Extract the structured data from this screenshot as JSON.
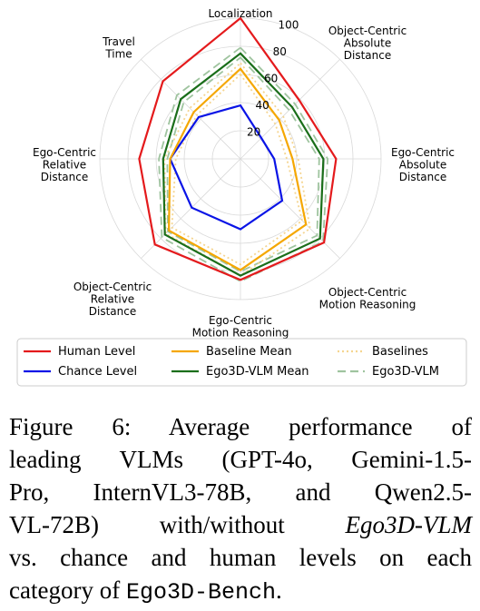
{
  "chart_data": {
    "type": "radar",
    "axes": [
      [
        "Localization"
      ],
      [
        "Object-Centric",
        "Absolute",
        "Distance"
      ],
      [
        "Ego-Centric",
        "Absolute",
        "Distance"
      ],
      [
        "Object-Centric",
        "Motion Reasoning"
      ],
      [
        "Ego-Centric",
        "Motion Reasoning"
      ],
      [
        "Object-Centric",
        "Relative",
        "Distance"
      ],
      [
        "Ego-Centric",
        "Relative",
        "Distance"
      ],
      [
        "Travel",
        "Time"
      ]
    ],
    "r_ticks": [
      "20",
      "40",
      "60",
      "80",
      "100"
    ],
    "r_range": [
      0,
      100
    ],
    "grid": true,
    "legend_position": "bottom",
    "series": [
      {
        "name": "Human Level",
        "color": "#e41a1c",
        "style": "solid",
        "values": [
          100,
          59,
          68,
          84,
          86,
          86,
          72,
          78
        ]
      },
      {
        "name": "Chance Level",
        "color": "#0a14e6",
        "style": "solid",
        "values": [
          38,
          21,
          24,
          42,
          50,
          49,
          50,
          42
        ]
      },
      {
        "name": "Baseline Mean",
        "color": "#f5a700",
        "style": "solid",
        "values": [
          64,
          39,
          37,
          66,
          79,
          72,
          50,
          47
        ]
      },
      {
        "name": "Ego3D-VLM Mean",
        "color": "#1a6e1a",
        "style": "solid",
        "values": [
          75,
          52,
          59,
          80,
          83,
          76,
          55,
          60
        ]
      },
      {
        "name": "Baselines",
        "color": "#f5d590",
        "style": "dotted",
        "group": [
          [
            60,
            35,
            33,
            62,
            75,
            69,
            46,
            44
          ],
          [
            68,
            43,
            41,
            70,
            83,
            75,
            54,
            51
          ]
        ]
      },
      {
        "name": "Ego3D-VLM",
        "color": "#9fc49f",
        "style": "dashed",
        "group": [
          [
            72,
            49,
            56,
            77,
            80,
            73,
            52,
            57
          ],
          [
            79,
            55,
            62,
            83,
            87,
            79,
            58,
            64
          ]
        ]
      }
    ],
    "legend": [
      {
        "label": "Human Level",
        "color": "#e41a1c",
        "style": "solid"
      },
      {
        "label": "Baseline Mean",
        "color": "#f5a700",
        "style": "solid"
      },
      {
        "label": "Baselines",
        "color": "#f5d590",
        "style": "dotted"
      },
      {
        "label": "Chance Level",
        "color": "#0a14e6",
        "style": "solid"
      },
      {
        "label": "Ego3D-VLM Mean",
        "color": "#1a6e1a",
        "style": "solid"
      },
      {
        "label": "Ego3D-VLM",
        "color": "#9fc49f",
        "style": "dashed"
      }
    ]
  },
  "caption": {
    "line1": "Figure 6: Average performance of",
    "line2": "leading VLMs (GPT-4o, Gemini-1.5-",
    "line3": "Pro, InternVL3-78B, and Qwen2.5-",
    "line4_a": "VL-72B) with/without ",
    "line4_em": "Ego3D-VLM",
    "line5": "vs. chance and human levels on each",
    "line6_a": "category of ",
    "line6_mono": "Ego3D-Bench",
    "line6_b": "."
  }
}
